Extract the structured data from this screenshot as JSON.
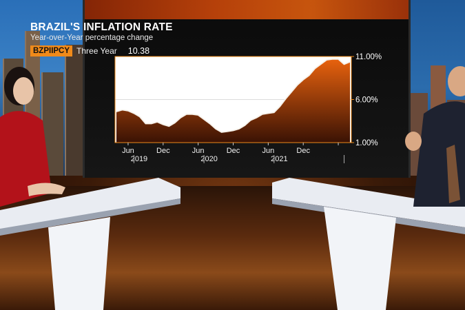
{
  "chart_data": {
    "type": "area",
    "title": "BRAZIL'S INFLATION RATE",
    "subtitle": "Year-over-Year percentage change",
    "ticker": "BZPIIPCY",
    "period": "Three Year",
    "last_value": "10.38",
    "ylim": [
      1,
      11
    ],
    "y_ticks": [
      "11.00%",
      "6.00%",
      "1.00%"
    ],
    "x_tick_labels": [
      "Jun",
      "Dec",
      "Jun",
      "Dec",
      "Jun",
      "Dec"
    ],
    "x_year_labels": [
      "2019",
      "2020",
      "2021"
    ],
    "x": [
      "2018-10",
      "2018-11",
      "2018-12",
      "2019-01",
      "2019-02",
      "2019-03",
      "2019-04",
      "2019-05",
      "2019-06",
      "2019-07",
      "2019-08",
      "2019-09",
      "2019-10",
      "2019-11",
      "2019-12",
      "2020-01",
      "2020-02",
      "2020-03",
      "2020-04",
      "2020-05",
      "2020-06",
      "2020-07",
      "2020-08",
      "2020-09",
      "2020-10",
      "2020-11",
      "2020-12",
      "2021-01",
      "2021-02",
      "2021-03",
      "2021-04",
      "2021-05",
      "2021-06",
      "2021-07",
      "2021-08",
      "2021-09",
      "2021-10",
      "2021-11",
      "2021-12",
      "2022-01",
      "2022-02"
    ],
    "values": [
      4.6,
      4.8,
      4.7,
      4.4,
      4.0,
      3.2,
      3.2,
      3.4,
      3.1,
      2.9,
      3.3,
      3.9,
      4.3,
      4.3,
      4.2,
      3.7,
      3.2,
      2.6,
      2.2,
      2.3,
      2.4,
      2.6,
      3.0,
      3.6,
      3.9,
      4.3,
      4.4,
      4.5,
      5.2,
      6.1,
      6.9,
      7.7,
      8.3,
      8.8,
      9.6,
      10.1,
      10.6,
      10.7,
      10.7,
      10.1,
      10.38
    ],
    "colors": {
      "area_top": "#e8620e",
      "area_bottom": "#3a1204",
      "line": "#f5f1ea",
      "plot_bg": "#ffffff",
      "plot_border": "#f08a1a"
    }
  }
}
